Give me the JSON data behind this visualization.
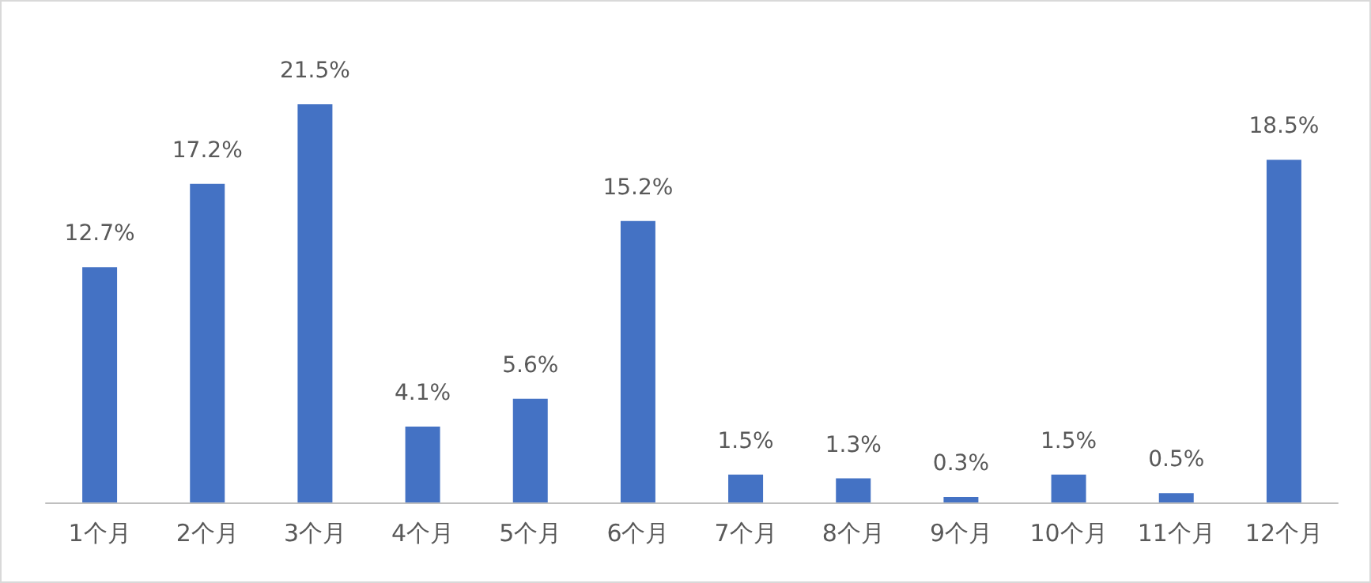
{
  "chart_data": {
    "type": "bar",
    "categories": [
      "1个月",
      "2个月",
      "3个月",
      "4个月",
      "5个月",
      "6个月",
      "7个月",
      "8个月",
      "9个月",
      "10个月",
      "11个月",
      "12个月"
    ],
    "values": [
      12.7,
      17.2,
      21.5,
      4.1,
      5.6,
      15.2,
      1.5,
      1.3,
      0.3,
      1.5,
      0.5,
      18.5
    ],
    "value_labels": [
      "12.7%",
      "17.2%",
      "21.5%",
      "4.1%",
      "5.6%",
      "15.2%",
      "1.5%",
      "1.3%",
      "0.3%",
      "1.5%",
      "0.5%",
      "18.5%"
    ],
    "color": "#4472c4"
  }
}
